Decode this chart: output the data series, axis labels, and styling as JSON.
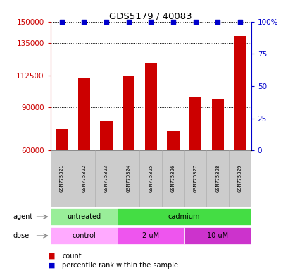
{
  "title": "GDS5179 / 40083",
  "samples": [
    "GSM775321",
    "GSM775322",
    "GSM775323",
    "GSM775324",
    "GSM775325",
    "GSM775326",
    "GSM775327",
    "GSM775328",
    "GSM775329"
  ],
  "counts": [
    75000,
    111000,
    81000,
    112500,
    121000,
    74000,
    97000,
    96000,
    140000
  ],
  "percentiles": [
    100,
    100,
    100,
    100,
    100,
    100,
    100,
    100,
    100
  ],
  "ylim_left": [
    60000,
    150000
  ],
  "yticks_left": [
    60000,
    90000,
    112500,
    135000,
    150000
  ],
  "ylim_right": [
    0,
    100
  ],
  "yticks_right": [
    0,
    25,
    50,
    75,
    100
  ],
  "bar_color": "#cc0000",
  "marker_color": "#0000cc",
  "agent_groups": [
    {
      "label": "untreated",
      "start": 0,
      "end": 3,
      "color": "#99ee99"
    },
    {
      "label": "cadmium",
      "start": 3,
      "end": 9,
      "color": "#44dd44"
    }
  ],
  "dose_groups": [
    {
      "label": "control",
      "start": 0,
      "end": 3,
      "color": "#ffaaff"
    },
    {
      "label": "2 uM",
      "start": 3,
      "end": 6,
      "color": "#ee55ee"
    },
    {
      "label": "10 uM",
      "start": 6,
      "end": 9,
      "color": "#cc33cc"
    }
  ],
  "legend_count_label": "count",
  "legend_percentile_label": "percentile rank within the sample",
  "tick_color_left": "#cc0000",
  "tick_color_right": "#0000cc",
  "grid_color": "#000000",
  "sample_bg_color": "#cccccc",
  "sample_border_color": "#aaaaaa"
}
